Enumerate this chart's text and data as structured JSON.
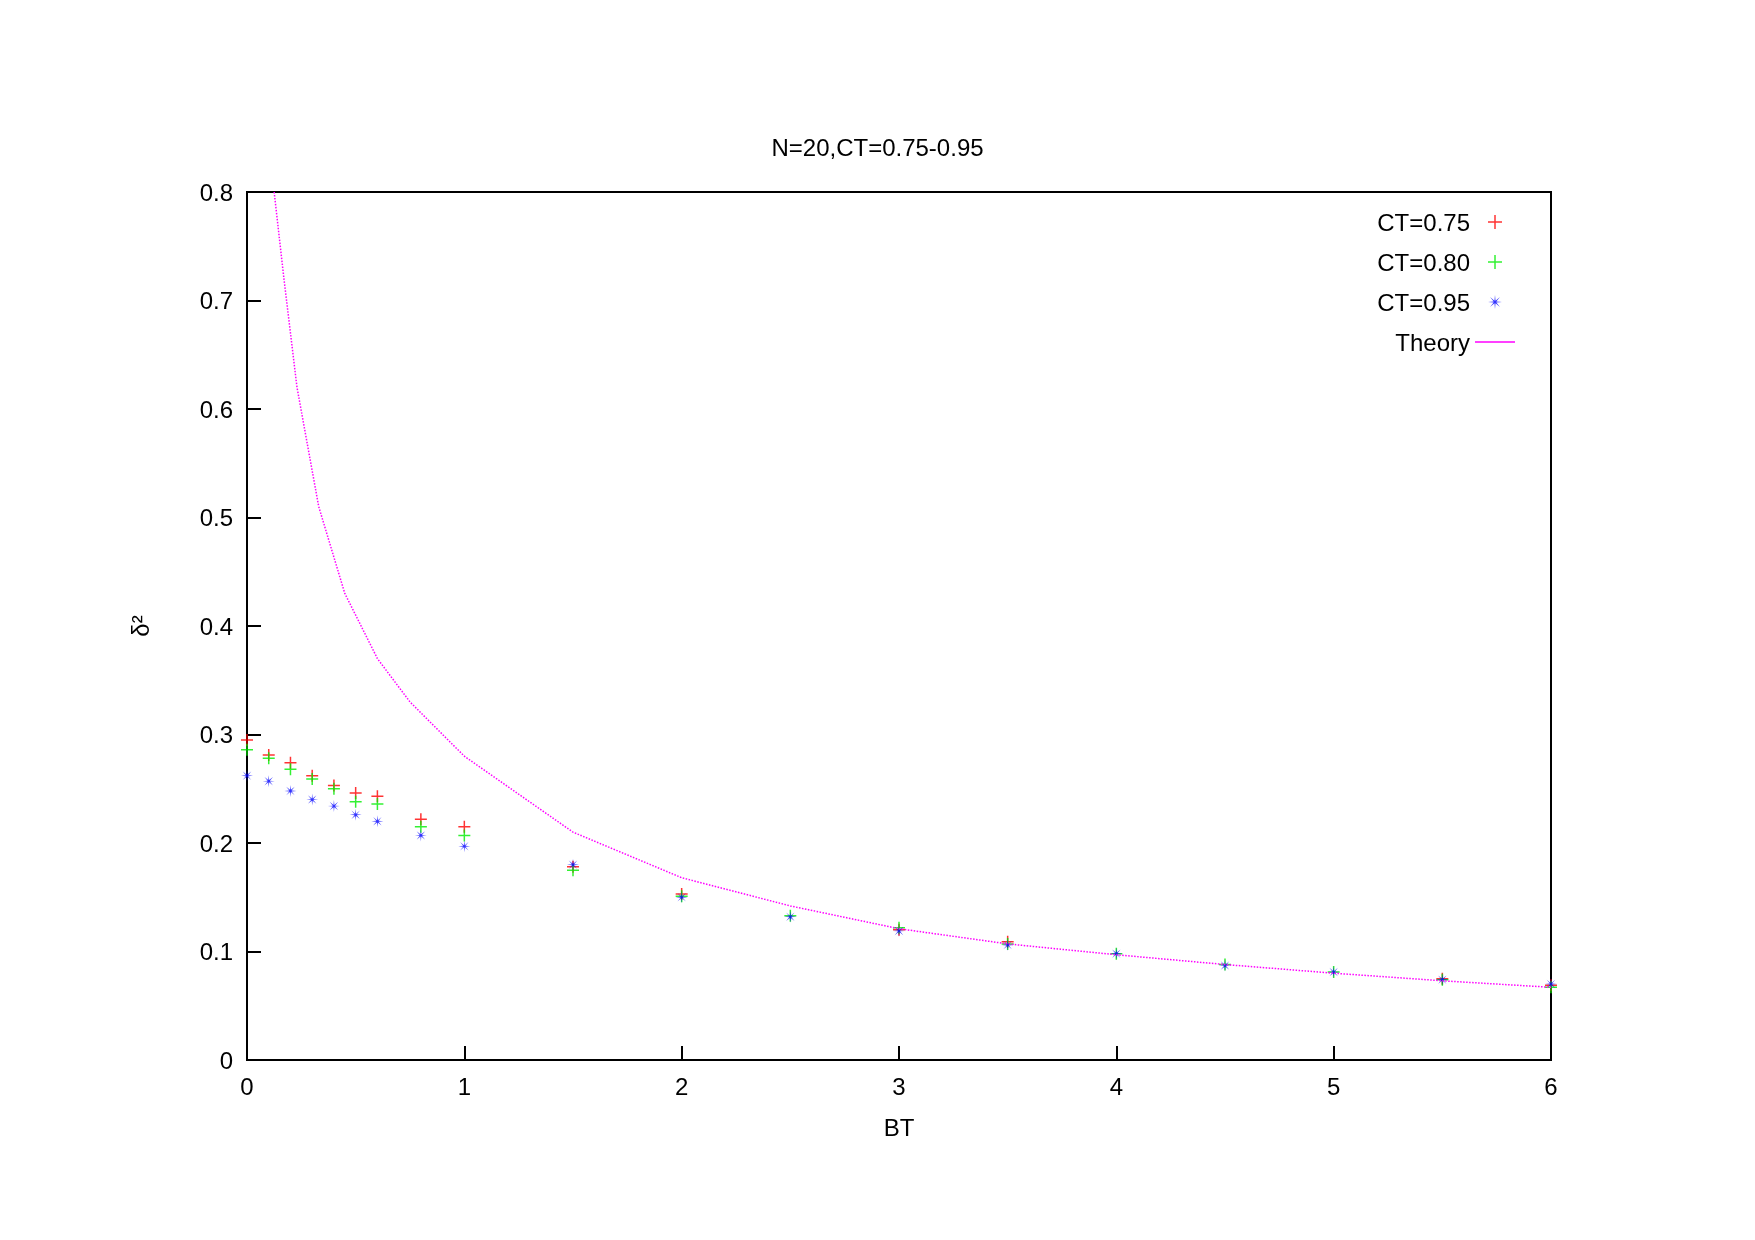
{
  "chart_data": {
    "type": "scatter",
    "title": "N=20,CT=0.75-0.95",
    "xlabel": "BT",
    "ylabel": "δ²",
    "xlim": [
      0,
      6
    ],
    "xticks": [
      0,
      1,
      2,
      3,
      4,
      5,
      6
    ],
    "ylim": [
      0,
      0.8
    ],
    "yticks": [
      0,
      0.1,
      0.2,
      0.3,
      0.4,
      0.5,
      0.6,
      0.7,
      0.8
    ],
    "grid": false,
    "legend": "top right",
    "x": [
      0,
      0.1,
      0.2,
      0.3,
      0.4,
      0.5,
      0.6,
      0.8,
      1,
      1.5,
      2,
      2.5,
      3,
      3.5,
      4,
      4.5,
      5,
      5.5,
      6
    ],
    "series": [
      {
        "name": "CT=0.75",
        "color": "#ff0000",
        "marker": "cross",
        "values": [
          0.295,
          0.281,
          0.274,
          0.262,
          0.253,
          0.246,
          0.243,
          0.222,
          0.215,
          0.178,
          0.153,
          null,
          0.12,
          0.109,
          null,
          null,
          null,
          0.075,
          0.069
        ]
      },
      {
        "name": "CT=0.80",
        "color": "#00ee00",
        "marker": "cross",
        "values": [
          0.286,
          0.278,
          0.268,
          0.259,
          0.25,
          0.238,
          0.236,
          0.215,
          0.207,
          0.175,
          0.151,
          0.133,
          0.122,
          0.107,
          0.098,
          0.088,
          0.081,
          0.074,
          0.067
        ]
      },
      {
        "name": "CT=0.95",
        "color": "#0000ff",
        "marker": "star",
        "values": [
          0.262,
          0.257,
          0.248,
          0.24,
          0.234,
          0.226,
          0.22,
          0.207,
          0.197,
          0.18,
          0.15,
          0.132,
          0.119,
          0.106,
          0.098,
          0.087,
          0.081,
          0.074,
          0.07
        ]
      },
      {
        "name": "Theory",
        "type": "line",
        "color": "#ff00ff",
        "marker": "none",
        "line_style": "dotted",
        "x": [
          0.125,
          0.17,
          0.23,
          0.33,
          0.45,
          0.6,
          0.75,
          1,
          1.5,
          2,
          2.5,
          3,
          3.5,
          4,
          4.5,
          5,
          5.5,
          6
        ],
        "values": [
          0.8,
          0.72,
          0.62,
          0.51,
          0.43,
          0.37,
          0.33,
          0.28,
          0.21,
          0.168,
          0.142,
          0.121,
          0.107,
          0.097,
          0.088,
          0.08,
          0.073,
          0.067
        ]
      }
    ]
  }
}
